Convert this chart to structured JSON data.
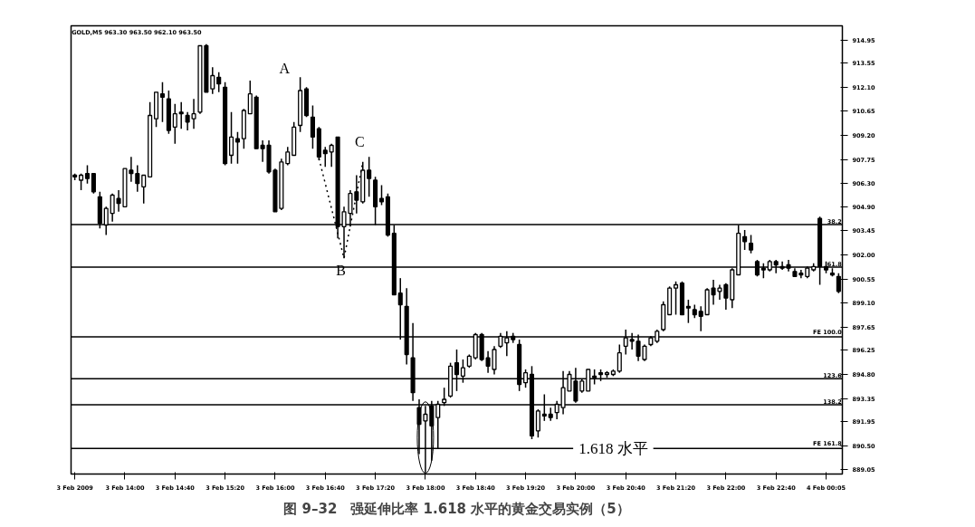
{
  "chart_data": {
    "type": "candlestick",
    "title": "图 9–32　强延伸比率 1.618 水平的黄金交易实例（5）",
    "subtitle": "GOLD,M5  963.30 963.50 962.10 963.50",
    "categories": [
      "3 Feb 2009",
      null,
      null,
      null,
      null,
      null,
      null,
      null,
      "3 Feb 14:00",
      null,
      null,
      null,
      null,
      null,
      null,
      null,
      "3 Feb 14:40",
      null,
      null,
      null,
      null,
      null,
      null,
      null,
      "3 Feb 15:20",
      null,
      null,
      null,
      null,
      null,
      null,
      null,
      "3 Feb 16:00",
      null,
      null,
      null,
      null,
      null,
      null,
      null,
      "3 Feb 16:40",
      null,
      null,
      null,
      null,
      null,
      null,
      null,
      "3 Feb 17:20",
      null,
      null,
      null,
      null,
      null,
      null,
      null,
      "3 Feb 18:00",
      null,
      null,
      null,
      null,
      null,
      null,
      null,
      "3 Feb 18:40",
      null,
      null,
      null,
      null,
      null,
      null,
      null,
      "3 Feb 19:20",
      null,
      null,
      null,
      null,
      null,
      null,
      null,
      "3 Feb 20:00",
      null,
      null,
      null,
      null,
      null,
      null,
      null,
      "3 Feb 20:40",
      null,
      null,
      null,
      null,
      null,
      null,
      null,
      "3 Feb 21:20",
      null,
      null,
      null,
      null,
      null,
      null,
      null,
      "3 Feb 22:00",
      null,
      null,
      null,
      null,
      null,
      null,
      null,
      "3 Feb 22:40",
      null,
      null,
      null,
      null,
      null,
      null,
      null,
      "4 Feb 00:05",
      null,
      null
    ],
    "series": [
      {
        "color": "#000000",
        "ohlc": [
          [
            906.8,
            906.9,
            906.5,
            906.7
          ],
          [
            906.5,
            906.9,
            905.9,
            906.8
          ],
          [
            906.9,
            907.4,
            906.3,
            906.6
          ],
          [
            906.9,
            906.9,
            905.7,
            905.8
          ],
          [
            905.5,
            905.8,
            903.6,
            903.9
          ],
          [
            903.8,
            904.9,
            903.2,
            904.8
          ],
          [
            904.5,
            905.7,
            904.0,
            905.6
          ],
          [
            905.4,
            905.9,
            904.6,
            905.1
          ],
          [
            904.9,
            907.2,
            904.9,
            907.2
          ],
          [
            907.1,
            907.9,
            906.4,
            906.9
          ],
          [
            906.9,
            907.4,
            905.8,
            906.3
          ],
          [
            906.1,
            906.8,
            905.1,
            906.8
          ],
          [
            906.7,
            911.2,
            906.7,
            910.4
          ],
          [
            910.2,
            911.8,
            909.7,
            911.8
          ],
          [
            911.7,
            912.4,
            910.0,
            911.5
          ],
          [
            911.4,
            911.9,
            909.3,
            909.5
          ],
          [
            909.7,
            911.1,
            908.7,
            910.5
          ],
          [
            910.6,
            911.2,
            909.6,
            910.5
          ],
          [
            910.4,
            910.6,
            909.5,
            910.0
          ],
          [
            910.2,
            911.4,
            909.6,
            910.5
          ],
          [
            910.6,
            914.6,
            910.5,
            914.6
          ],
          [
            914.6,
            914.7,
            911.8,
            911.8
          ],
          [
            912.0,
            913.3,
            911.7,
            912.8
          ],
          [
            912.7,
            913.0,
            911.8,
            912.3
          ],
          [
            912.1,
            912.4,
            907.4,
            907.5
          ],
          [
            908.0,
            910.6,
            907.5,
            909.1
          ],
          [
            909.0,
            909.4,
            907.5,
            908.8
          ],
          [
            909.0,
            910.8,
            908.4,
            910.7
          ],
          [
            910.5,
            912.5,
            910.5,
            911.7
          ],
          [
            911.5,
            911.6,
            908.4,
            908.4
          ],
          [
            908.6,
            908.9,
            907.6,
            908.4
          ],
          [
            908.6,
            908.9,
            906.9,
            907.0
          ],
          [
            907.1,
            907.2,
            904.6,
            904.6
          ],
          [
            904.8,
            907.8,
            904.7,
            907.6
          ],
          [
            907.5,
            908.5,
            907.4,
            908.2
          ],
          [
            908.0,
            910.0,
            908.0,
            909.7
          ],
          [
            909.8,
            912.7,
            909.4,
            911.9
          ],
          [
            912.0,
            912.1,
            910.3,
            910.4
          ],
          [
            910.3,
            911.0,
            908.4,
            909.1
          ],
          [
            909.6,
            909.7,
            907.7,
            907.9
          ],
          [
            908.3,
            908.5,
            907.3,
            908.1
          ],
          [
            908.2,
            908.7,
            907.3,
            908.6
          ],
          [
            909.1,
            909.1,
            903.0,
            903.7
          ],
          [
            903.7,
            904.9,
            901.8,
            904.6
          ],
          [
            904.5,
            905.9,
            903.7,
            905.7
          ],
          [
            905.8,
            906.8,
            904.5,
            905.3
          ],
          [
            905.2,
            907.6,
            905.1,
            907.1
          ],
          [
            907.1,
            907.9,
            905.5,
            906.6
          ],
          [
            906.5,
            906.7,
            903.8,
            904.9
          ],
          [
            905.4,
            906.2,
            905.0,
            905.2
          ],
          [
            905.5,
            905.7,
            903.1,
            903.2
          ],
          [
            903.3,
            903.8,
            899.6,
            899.6
          ],
          [
            899.7,
            900.6,
            896.9,
            899.0
          ],
          [
            898.9,
            900.0,
            895.4,
            896.0
          ],
          [
            895.8,
            897.9,
            893.2,
            893.7
          ],
          [
            892.8,
            893.3,
            890.0,
            891.8
          ],
          [
            892.0,
            892.9,
            888.9,
            892.4
          ],
          [
            892.9,
            893.2,
            889.6,
            891.7
          ],
          [
            892.2,
            893.2,
            890.3,
            893.0
          ],
          [
            893.1,
            894.0,
            892.9,
            893.3
          ],
          [
            893.5,
            895.5,
            893.4,
            895.3
          ],
          [
            895.5,
            896.3,
            893.8,
            894.8
          ],
          [
            894.7,
            895.7,
            894.3,
            895.2
          ],
          [
            895.3,
            896.0,
            895.2,
            895.9
          ],
          [
            895.8,
            897.3,
            895.7,
            897.2
          ],
          [
            897.2,
            897.3,
            895.6,
            895.7
          ],
          [
            895.8,
            896.2,
            894.9,
            895.3
          ],
          [
            895.1,
            896.5,
            894.8,
            896.3
          ],
          [
            896.5,
            897.3,
            896.4,
            897.1
          ],
          [
            896.7,
            897.4,
            895.9,
            897.0
          ],
          [
            897.1,
            897.3,
            896.7,
            896.9
          ],
          [
            896.6,
            896.9,
            893.8,
            894.2
          ],
          [
            894.3,
            895.1,
            894.0,
            894.9
          ],
          [
            894.8,
            895.3,
            890.9,
            891.1
          ],
          [
            891.4,
            892.7,
            891.0,
            892.6
          ],
          [
            892.4,
            893.6,
            892.0,
            892.3
          ],
          [
            892.4,
            892.8,
            892.0,
            892.2
          ],
          [
            892.5,
            893.2,
            892.1,
            893.0
          ],
          [
            892.8,
            895.0,
            892.4,
            894.0
          ],
          [
            893.8,
            895.0,
            893.8,
            894.8
          ],
          [
            894.4,
            895.2,
            893.1,
            893.2
          ],
          [
            893.8,
            894.5,
            893.7,
            894.4
          ],
          [
            893.8,
            895.1,
            893.8,
            895.1
          ],
          [
            894.7,
            895.1,
            894.2,
            894.6
          ],
          [
            894.9,
            895.1,
            894.4,
            894.8
          ],
          [
            894.8,
            895.0,
            894.6,
            894.9
          ],
          [
            894.8,
            895.1,
            894.7,
            895.0
          ],
          [
            895.0,
            896.6,
            894.9,
            896.1
          ],
          [
            896.5,
            897.5,
            896.0,
            897.0
          ],
          [
            896.9,
            897.3,
            896.3,
            896.8
          ],
          [
            896.8,
            897.2,
            895.6,
            895.9
          ],
          [
            895.7,
            896.6,
            895.6,
            896.5
          ],
          [
            896.6,
            897.1,
            896.5,
            897.0
          ],
          [
            896.8,
            897.5,
            896.7,
            897.4
          ],
          [
            897.5,
            899.2,
            897.4,
            899.0
          ],
          [
            898.4,
            900.1,
            898.4,
            900.0
          ],
          [
            900.0,
            900.4,
            898.4,
            900.2
          ],
          [
            900.3,
            900.4,
            898.4,
            898.4
          ],
          [
            898.9,
            899.3,
            897.9,
            898.8
          ],
          [
            898.7,
            899.0,
            898.2,
            898.4
          ],
          [
            898.6,
            898.9,
            897.4,
            898.3
          ],
          [
            898.4,
            900.0,
            898.4,
            899.9
          ],
          [
            900.0,
            900.5,
            899.0,
            899.6
          ],
          [
            899.8,
            900.2,
            899.3,
            900.0
          ],
          [
            900.2,
            900.3,
            898.7,
            899.4
          ],
          [
            899.3,
            901.2,
            898.8,
            901.1
          ],
          [
            900.8,
            903.8,
            900.8,
            903.3
          ],
          [
            903.1,
            903.5,
            902.3,
            902.8
          ],
          [
            902.7,
            903.2,
            902.1,
            902.3
          ],
          [
            901.6,
            901.7,
            900.7,
            900.8
          ],
          [
            901.2,
            901.5,
            900.6,
            901.1
          ],
          [
            901.1,
            901.7,
            901.0,
            901.6
          ],
          [
            901.6,
            901.7,
            900.9,
            901.4
          ],
          [
            901.3,
            901.6,
            901.1,
            901.2
          ],
          [
            901.4,
            901.7,
            901.0,
            901.2
          ],
          [
            901.0,
            901.2,
            900.7,
            900.7
          ],
          [
            900.9,
            901.1,
            900.6,
            900.8
          ],
          [
            900.7,
            901.3,
            900.6,
            901.2
          ],
          [
            901.1,
            901.5,
            901.0,
            901.3
          ],
          [
            904.2,
            904.3,
            900.2,
            901.3
          ],
          [
            901.3,
            901.6,
            900.9,
            901.1
          ],
          [
            900.9,
            901.2,
            900.7,
            900.8
          ],
          [
            900.7,
            900.9,
            899.7,
            899.8
          ]
        ]
      },
      {
        "type": "line",
        "color": "#000000",
        "line_style": "dotted",
        "values": [
          null,
          null,
          null,
          null,
          null,
          null,
          null,
          null,
          null,
          null,
          null,
          null,
          null,
          null,
          null,
          null,
          null,
          null,
          null,
          null,
          null,
          null,
          null,
          null,
          null,
          null,
          null,
          null,
          null,
          null,
          null,
          null,
          null,
          null,
          null,
          null,
          null,
          null,
          null,
          907.8,
          null,
          null,
          null,
          901.8,
          null,
          null,
          907.6,
          null,
          null,
          null,
          null,
          null,
          null,
          null,
          null,
          null,
          null,
          null,
          null,
          null,
          null,
          null,
          null,
          null,
          null,
          null,
          null,
          null,
          null,
          null,
          null,
          null,
          null,
          null,
          null,
          null,
          null,
          null,
          null,
          null,
          null,
          null,
          null,
          null,
          null,
          null,
          null,
          null,
          null,
          null,
          null,
          null,
          null,
          null,
          null,
          null,
          null,
          null,
          null,
          null,
          null,
          null,
          null,
          null,
          null,
          null,
          null,
          null,
          null,
          null,
          null,
          null,
          null,
          null,
          null,
          null,
          null,
          null,
          null,
          null,
          null,
          null,
          null
        ]
      }
    ],
    "ylim": [
      888.8,
      915.8
    ],
    "yticks": [
      {
        "value": 889.05,
        "label": "889.05"
      },
      {
        "value": 890.5,
        "label": "890.50"
      },
      891.95,
      893.35,
      {
        "value": 894.8,
        "label": "894.80"
      },
      896.25,
      897.65,
      {
        "value": 899.1,
        "label": "899.10"
      },
      900.55,
      {
        "value": 902.0,
        "label": "902.00"
      },
      903.45,
      {
        "value": 904.9,
        "label": "904.90"
      },
      {
        "value": 906.3,
        "label": "906.30"
      },
      907.75,
      {
        "value": 909.2,
        "label": "909.20"
      },
      910.65,
      {
        "value": 912.1,
        "label": "912.10"
      },
      913.55,
      914.95
    ],
    "ref_lines": [
      {
        "axis": "y",
        "value": 903.83,
        "color": "#000000"
      },
      {
        "axis": "y",
        "value": 901.26,
        "color": "#000000"
      },
      {
        "axis": "y",
        "value": 897.06,
        "color": "#000000"
      },
      {
        "axis": "y",
        "value": 894.54,
        "color": "#000000"
      },
      {
        "axis": "y",
        "value": 892.97,
        "color": "#000000"
      },
      {
        "axis": "y",
        "value": 890.34,
        "color": "#000000"
      }
    ],
    "annotations": [
      "A",
      "B",
      "C",
      {
        "text": "1.618 水平",
        "y": 890.34
      },
      {
        "text": "38.2",
        "y": 903.83
      },
      {
        "text": "61.8",
        "y": 901.26
      },
      {
        "text": "FE 100.0",
        "y": 897.06
      },
      {
        "text": "123.6",
        "y": 894.54
      },
      {
        "text": "138.2",
        "y": 892.97
      },
      {
        "text": "FE 161.8",
        "y": 890.34
      }
    ],
    "grid": false
  }
}
